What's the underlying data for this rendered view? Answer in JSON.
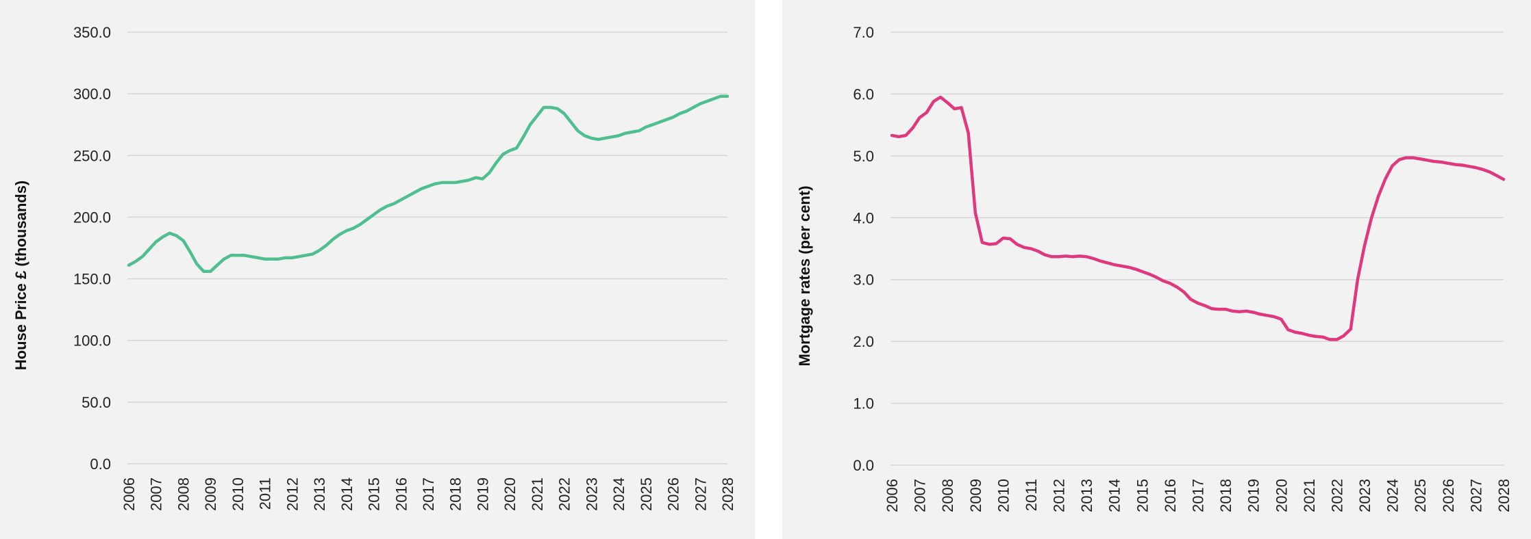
{
  "chart_data": [
    {
      "type": "line",
      "ylabel": "House Price £ (thousands)",
      "xlabel": "",
      "ylim": [
        0,
        350
      ],
      "yticks": [
        "0.0",
        "50.0",
        "100.0",
        "150.0",
        "200.0",
        "250.0",
        "300.0",
        "350.0"
      ],
      "xlim": [
        2006,
        2028
      ],
      "xticks": [
        "2006",
        "2007",
        "2008",
        "2009",
        "2010",
        "2011",
        "2012",
        "2013",
        "2014",
        "2015",
        "2016",
        "2017",
        "2018",
        "2019",
        "2020",
        "2021",
        "2022",
        "2023",
        "2024",
        "2025",
        "2026",
        "2027",
        "2028"
      ],
      "grid": true,
      "color": "#4fbf8f",
      "series": [
        {
          "x": [
            2006.0,
            2006.25,
            2006.5,
            2006.75,
            2007.0,
            2007.25,
            2007.5,
            2007.75,
            2008.0,
            2008.25,
            2008.5,
            2008.75,
            2009.0,
            2009.25,
            2009.5,
            2009.75,
            2010.0,
            2010.25,
            2010.5,
            2010.75,
            2011.0,
            2011.25,
            2011.5,
            2011.75,
            2012.0,
            2012.25,
            2012.5,
            2012.75,
            2013.0,
            2013.25,
            2013.5,
            2013.75,
            2014.0,
            2014.25,
            2014.5,
            2014.75,
            2015.0,
            2015.25,
            2015.5,
            2015.75,
            2016.0,
            2016.25,
            2016.5,
            2016.75,
            2017.0,
            2017.25,
            2017.5,
            2017.75,
            2018.0,
            2018.25,
            2018.5,
            2018.75,
            2019.0,
            2019.25,
            2019.5,
            2019.75,
            2020.0,
            2020.25,
            2020.5,
            2020.75,
            2021.0,
            2021.25,
            2021.5,
            2021.75,
            2022.0,
            2022.25,
            2022.5,
            2022.75,
            2023.0,
            2023.25,
            2023.5,
            2023.75,
            2024.0,
            2024.25,
            2024.5,
            2024.75,
            2025.0,
            2025.25,
            2025.5,
            2025.75,
            2026.0,
            2026.25,
            2026.5,
            2026.75,
            2027.0,
            2027.25,
            2027.5,
            2027.75,
            2028.0
          ],
          "values": [
            161,
            164,
            168,
            174,
            180,
            184,
            187,
            185,
            181,
            172,
            162,
            156,
            156,
            161,
            166,
            169,
            169,
            169,
            168,
            167,
            166,
            166,
            166,
            167,
            167,
            168,
            169,
            170,
            173,
            177,
            182,
            186,
            189,
            191,
            194,
            198,
            202,
            206,
            209,
            211,
            214,
            217,
            220,
            223,
            225,
            227,
            228,
            228,
            228,
            229,
            230,
            232,
            231,
            236,
            244,
            251,
            254,
            256,
            265,
            275,
            282,
            289,
            289,
            288,
            284,
            277,
            270,
            266,
            264,
            263,
            264,
            265,
            266,
            268,
            269,
            270,
            273,
            275,
            277,
            279,
            281,
            284,
            286,
            289,
            292,
            294,
            296,
            298,
            298
          ]
        }
      ]
    },
    {
      "type": "line",
      "ylabel": "Mortgage rates (per cent)",
      "xlabel": "",
      "ylim": [
        0,
        7
      ],
      "yticks": [
        "0.0",
        "1.0",
        "2.0",
        "3.0",
        "4.0",
        "5.0",
        "6.0",
        "7.0"
      ],
      "xlim": [
        2006,
        2028
      ],
      "xticks": [
        "2006",
        "2007",
        "2008",
        "2009",
        "2010",
        "2011",
        "2012",
        "2013",
        "2014",
        "2015",
        "2016",
        "2017",
        "2018",
        "2019",
        "2020",
        "2021",
        "2022",
        "2023",
        "2024",
        "2025",
        "2026",
        "2027",
        "2028"
      ],
      "grid": true,
      "color": "#e0387e",
      "series": [
        {
          "x": [
            2006.0,
            2006.25,
            2006.5,
            2006.75,
            2007.0,
            2007.25,
            2007.5,
            2007.75,
            2008.0,
            2008.25,
            2008.5,
            2008.75,
            2009.0,
            2009.25,
            2009.5,
            2009.75,
            2010.0,
            2010.25,
            2010.5,
            2010.75,
            2011.0,
            2011.25,
            2011.5,
            2011.75,
            2012.0,
            2012.25,
            2012.5,
            2012.75,
            2013.0,
            2013.25,
            2013.5,
            2013.75,
            2014.0,
            2014.25,
            2014.5,
            2014.75,
            2015.0,
            2015.25,
            2015.5,
            2015.75,
            2016.0,
            2016.25,
            2016.5,
            2016.75,
            2017.0,
            2017.25,
            2017.5,
            2017.75,
            2018.0,
            2018.25,
            2018.5,
            2018.75,
            2019.0,
            2019.25,
            2019.5,
            2019.75,
            2020.0,
            2020.25,
            2020.5,
            2020.75,
            2021.0,
            2021.25,
            2021.5,
            2021.75,
            2022.0,
            2022.25,
            2022.5,
            2022.75,
            2023.0,
            2023.25,
            2023.5,
            2023.75,
            2024.0,
            2024.25,
            2024.5,
            2024.75,
            2025.0,
            2025.25,
            2025.5,
            2025.75,
            2026.0,
            2026.25,
            2026.5,
            2026.75,
            2027.0,
            2027.25,
            2027.5,
            2027.75,
            2028.0
          ],
          "values": [
            5.33,
            5.31,
            5.33,
            5.45,
            5.62,
            5.7,
            5.88,
            5.95,
            5.86,
            5.76,
            5.78,
            5.37,
            4.08,
            3.6,
            3.57,
            3.58,
            3.67,
            3.66,
            3.57,
            3.52,
            3.5,
            3.46,
            3.4,
            3.37,
            3.37,
            3.38,
            3.37,
            3.38,
            3.37,
            3.34,
            3.3,
            3.27,
            3.24,
            3.22,
            3.2,
            3.17,
            3.13,
            3.09,
            3.04,
            2.98,
            2.94,
            2.88,
            2.8,
            2.68,
            2.62,
            2.58,
            2.53,
            2.52,
            2.52,
            2.49,
            2.48,
            2.49,
            2.47,
            2.44,
            2.42,
            2.4,
            2.36,
            2.19,
            2.15,
            2.13,
            2.1,
            2.08,
            2.07,
            2.03,
            2.03,
            2.09,
            2.2,
            3.0,
            3.55,
            4.0,
            4.35,
            4.63,
            4.84,
            4.94,
            4.97,
            4.97,
            4.95,
            4.93,
            4.91,
            4.9,
            4.88,
            4.86,
            4.85,
            4.83,
            4.81,
            4.78,
            4.74,
            4.68,
            4.62
          ]
        }
      ]
    }
  ]
}
